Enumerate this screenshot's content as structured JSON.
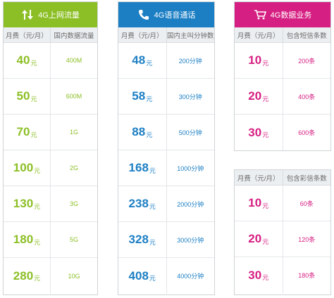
{
  "colors": {
    "green": "#8cbf26",
    "blue": "#1c7fc4",
    "magenta": "#d61f82"
  },
  "data_plan": {
    "title": "4G上网流量",
    "icon": "up-down-arrows-icon",
    "col1": "月费（元/月）",
    "col2": "国内数据流量",
    "rows": [
      {
        "price": "40",
        "unit": "元",
        "value": "400M"
      },
      {
        "price": "50",
        "unit": "元",
        "value": "600M"
      },
      {
        "price": "70",
        "unit": "元",
        "value": "1G"
      },
      {
        "price": "100",
        "unit": "元",
        "value": "2G"
      },
      {
        "price": "130",
        "unit": "元",
        "value": "3G"
      },
      {
        "price": "180",
        "unit": "元",
        "value": "5G"
      },
      {
        "price": "280",
        "unit": "元",
        "value": "10G"
      }
    ]
  },
  "voice_plan": {
    "title": "4G语音通话",
    "icon": "phone-icon",
    "col1": "月费（元/月）",
    "col2": "国内主叫分钟数",
    "rows": [
      {
        "price": "48",
        "unit": "元",
        "value": "200分钟"
      },
      {
        "price": "58",
        "unit": "元",
        "value": "300分钟"
      },
      {
        "price": "88",
        "unit": "元",
        "value": "500分钟"
      },
      {
        "price": "168",
        "unit": "元",
        "value": "1000分钟"
      },
      {
        "price": "238",
        "unit": "元",
        "value": "2000分钟"
      },
      {
        "price": "328",
        "unit": "元",
        "value": "3000分钟"
      },
      {
        "price": "408",
        "unit": "元",
        "value": "4000分钟"
      }
    ]
  },
  "sms_plan": {
    "title": "4G数据业务",
    "icon": "shopping-cart-icon",
    "col1": "月费（元/月）",
    "col2": "包含短信条数",
    "rows": [
      {
        "price": "10",
        "unit": "元",
        "value": "200条"
      },
      {
        "price": "20",
        "unit": "元",
        "value": "400条"
      },
      {
        "price": "30",
        "unit": "元",
        "value": "600条"
      }
    ]
  },
  "mms_plan": {
    "col1": "月费（元/月）",
    "col2": "包含彩信条数",
    "rows": [
      {
        "price": "10",
        "unit": "元",
        "value": "60条"
      },
      {
        "price": "20",
        "unit": "元",
        "value": "120条"
      },
      {
        "price": "30",
        "unit": "元",
        "value": "180条"
      }
    ]
  }
}
